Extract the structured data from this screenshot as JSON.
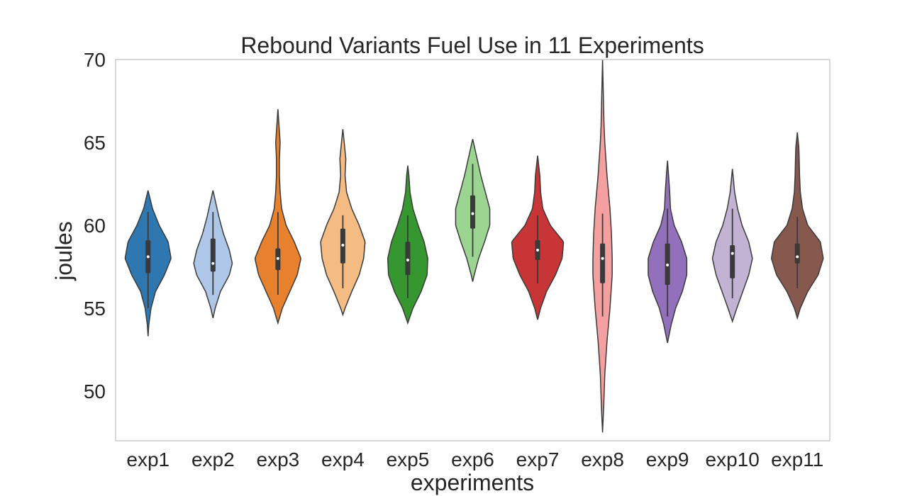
{
  "chart_data": {
    "type": "violin",
    "title": "Rebound Variants Fuel Use in 11 Experiments",
    "xlabel": "experiments",
    "ylabel": "joules",
    "ylim": [
      47,
      70
    ],
    "yticks": [
      50,
      55,
      60,
      65,
      70
    ],
    "grid": false,
    "categories": [
      "exp1",
      "exp2",
      "exp3",
      "exp4",
      "exp5",
      "exp6",
      "exp7",
      "exp8",
      "exp9",
      "exp10",
      "exp11"
    ],
    "colors": [
      "#2f77b1",
      "#aec7e8",
      "#e8812e",
      "#f4bc82",
      "#36962f",
      "#9cd592",
      "#c73536",
      "#f5a0a0",
      "#9370bb",
      "#c2b2d4",
      "#87584e"
    ],
    "violins": [
      {
        "min": 53.3,
        "max": 62.1,
        "q1": 57.1,
        "median": 58.1,
        "q3": 59.1,
        "whisker_low": 55.0,
        "whisker_high": 60.8,
        "profile": [
          [
            53.3,
            0
          ],
          [
            54.0,
            1
          ],
          [
            55.0,
            4
          ],
          [
            56.0,
            10
          ],
          [
            57.0,
            22
          ],
          [
            58.0,
            31
          ],
          [
            59.0,
            27
          ],
          [
            60.0,
            15
          ],
          [
            61.0,
            6
          ],
          [
            62.1,
            0
          ]
        ]
      },
      {
        "min": 54.4,
        "max": 62.1,
        "q1": 57.2,
        "median": 57.7,
        "q3": 59.2,
        "whisker_low": 55.8,
        "whisker_high": 60.8,
        "profile": [
          [
            54.4,
            0
          ],
          [
            55.0,
            3
          ],
          [
            56.0,
            10
          ],
          [
            57.0,
            22
          ],
          [
            57.7,
            26
          ],
          [
            58.5,
            22
          ],
          [
            59.5,
            14
          ],
          [
            60.5,
            8
          ],
          [
            61.3,
            4
          ],
          [
            62.1,
            0
          ]
        ]
      },
      {
        "min": 54.1,
        "max": 67.0,
        "q1": 57.3,
        "median": 58.0,
        "q3": 58.6,
        "whisker_low": 55.8,
        "whisker_high": 60.8,
        "profile": [
          [
            54.1,
            0
          ],
          [
            55.0,
            6
          ],
          [
            56.0,
            16
          ],
          [
            57.0,
            26
          ],
          [
            58.0,
            31
          ],
          [
            59.0,
            22
          ],
          [
            60.0,
            11
          ],
          [
            61.0,
            5
          ],
          [
            62.0,
            3
          ],
          [
            63.0,
            2
          ],
          [
            64.0,
            2
          ],
          [
            65.0,
            3
          ],
          [
            66.0,
            1.5
          ],
          [
            67.0,
            0
          ]
        ]
      },
      {
        "min": 54.6,
        "max": 65.8,
        "q1": 57.7,
        "median": 58.8,
        "q3": 59.8,
        "whisker_low": 56.2,
        "whisker_high": 60.6,
        "profile": [
          [
            54.6,
            0
          ],
          [
            55.0,
            3
          ],
          [
            56.0,
            12
          ],
          [
            57.0,
            22
          ],
          [
            58.0,
            28
          ],
          [
            59.0,
            30
          ],
          [
            60.0,
            22
          ],
          [
            61.0,
            12
          ],
          [
            62.0,
            5
          ],
          [
            63.0,
            3
          ],
          [
            64.0,
            4
          ],
          [
            64.7,
            2.5
          ],
          [
            65.8,
            0
          ]
        ]
      },
      {
        "min": 54.1,
        "max": 63.6,
        "q1": 57.0,
        "median": 57.9,
        "q3": 59.0,
        "whisker_low": 55.6,
        "whisker_high": 60.6,
        "profile": [
          [
            54.1,
            0
          ],
          [
            55.0,
            7
          ],
          [
            56.0,
            18
          ],
          [
            57.0,
            26
          ],
          [
            58.0,
            27
          ],
          [
            59.0,
            22
          ],
          [
            60.0,
            14
          ],
          [
            61.0,
            7
          ],
          [
            62.0,
            3
          ],
          [
            63.0,
            1.5
          ],
          [
            63.6,
            0
          ]
        ]
      },
      {
        "min": 56.6,
        "max": 65.2,
        "q1": 59.8,
        "median": 60.7,
        "q3": 61.8,
        "whisker_low": 58.1,
        "whisker_high": 63.7,
        "profile": [
          [
            56.6,
            0
          ],
          [
            57.0,
            2
          ],
          [
            58.0,
            8
          ],
          [
            59.0,
            16
          ],
          [
            60.0,
            23
          ],
          [
            61.0,
            23
          ],
          [
            62.0,
            17
          ],
          [
            63.0,
            11
          ],
          [
            64.0,
            6
          ],
          [
            64.6,
            3
          ],
          [
            65.2,
            0
          ]
        ]
      },
      {
        "min": 54.3,
        "max": 64.2,
        "q1": 57.9,
        "median": 58.5,
        "q3": 59.1,
        "whisker_low": 56.5,
        "whisker_high": 60.6,
        "profile": [
          [
            54.3,
            0
          ],
          [
            55.0,
            4
          ],
          [
            56.0,
            12
          ],
          [
            57.0,
            24
          ],
          [
            58.0,
            33
          ],
          [
            59.0,
            35
          ],
          [
            60.0,
            17
          ],
          [
            61.0,
            7
          ],
          [
            62.0,
            4
          ],
          [
            63.0,
            3
          ],
          [
            64.2,
            0
          ]
        ]
      },
      {
        "min": 47.5,
        "max": 70.0,
        "q1": 56.5,
        "median": 58.0,
        "q3": 58.9,
        "whisker_low": 54.5,
        "whisker_high": 60.7,
        "profile": [
          [
            47.5,
            0
          ],
          [
            49.0,
            1.5
          ],
          [
            51.0,
            3
          ],
          [
            53.0,
            6
          ],
          [
            55.0,
            10
          ],
          [
            57.0,
            13
          ],
          [
            58.0,
            13
          ],
          [
            59.5,
            12
          ],
          [
            61.0,
            10
          ],
          [
            63.0,
            6
          ],
          [
            65.0,
            3
          ],
          [
            66.0,
            2
          ],
          [
            67.0,
            1.5
          ],
          [
            68.0,
            1
          ],
          [
            70.0,
            0
          ]
        ]
      },
      {
        "min": 52.9,
        "max": 63.9,
        "q1": 56.4,
        "median": 57.6,
        "q3": 58.9,
        "whisker_low": 54.5,
        "whisker_high": 61.0,
        "profile": [
          [
            52.9,
            0
          ],
          [
            54.0,
            5
          ],
          [
            55.0,
            11
          ],
          [
            56.0,
            20
          ],
          [
            57.0,
            26
          ],
          [
            58.0,
            26
          ],
          [
            59.0,
            19
          ],
          [
            60.0,
            9
          ],
          [
            61.0,
            4
          ],
          [
            62.0,
            3
          ],
          [
            63.0,
            1.5
          ],
          [
            63.9,
            0
          ]
        ]
      },
      {
        "min": 54.2,
        "max": 63.4,
        "q1": 56.8,
        "median": 58.3,
        "q3": 58.8,
        "whisker_low": 55.6,
        "whisker_high": 61.0,
        "profile": [
          [
            54.2,
            0
          ],
          [
            55.0,
            6
          ],
          [
            56.0,
            14
          ],
          [
            57.0,
            22
          ],
          [
            58.0,
            27
          ],
          [
            59.0,
            22
          ],
          [
            60.0,
            13
          ],
          [
            61.0,
            7
          ],
          [
            62.0,
            3
          ],
          [
            63.4,
            0
          ]
        ]
      },
      {
        "min": 54.4,
        "max": 65.6,
        "q1": 57.7,
        "median": 58.1,
        "q3": 58.9,
        "whisker_low": 56.2,
        "whisker_high": 60.5,
        "profile": [
          [
            54.4,
            0
          ],
          [
            55.0,
            4
          ],
          [
            56.0,
            14
          ],
          [
            57.0,
            28
          ],
          [
            58.0,
            35
          ],
          [
            59.0,
            31
          ],
          [
            60.0,
            14
          ],
          [
            61.0,
            7
          ],
          [
            62.0,
            4
          ],
          [
            63.0,
            3
          ],
          [
            64.0,
            2.5
          ],
          [
            64.7,
            2
          ],
          [
            65.6,
            0
          ]
        ]
      }
    ]
  }
}
